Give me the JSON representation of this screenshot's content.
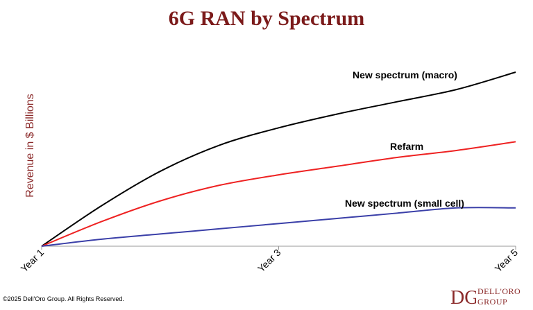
{
  "chart_data": {
    "type": "line",
    "title": "6G RAN by Spectrum",
    "xlabel": "",
    "ylabel": "Revenue in $ Billions",
    "x_ticks": [
      "Year 1",
      "Year 3",
      "Year 5"
    ],
    "x": [
      1,
      1.5,
      2,
      2.5,
      3,
      3.5,
      4,
      4.5,
      5
    ],
    "xlim": [
      1,
      5
    ],
    "ylim": [
      0,
      1
    ],
    "y_ticks_shown": false,
    "grid": false,
    "legend": "inline labels",
    "series": [
      {
        "name": "New spectrum (macro)",
        "color": "#000000",
        "values": [
          0,
          0.23,
          0.43,
          0.58,
          0.68,
          0.76,
          0.83,
          0.9,
          1.0
        ]
      },
      {
        "name": "Refarm",
        "color": "#ee2222",
        "values": [
          0,
          0.14,
          0.26,
          0.35,
          0.41,
          0.46,
          0.51,
          0.55,
          0.6
        ]
      },
      {
        "name": "New spectrum (small cell)",
        "color": "#3a3fa8",
        "values": [
          0,
          0.04,
          0.07,
          0.1,
          0.13,
          0.16,
          0.19,
          0.22,
          0.22
        ]
      }
    ]
  },
  "footer": {
    "copyright": "©2025 Dell'Oro Group. All Rights Reserved.",
    "logo_line1": "DELL'ORO",
    "logo_line2": "GROUP",
    "logo_initials": "DG",
    "logo_color": "#8b2a2a"
  }
}
